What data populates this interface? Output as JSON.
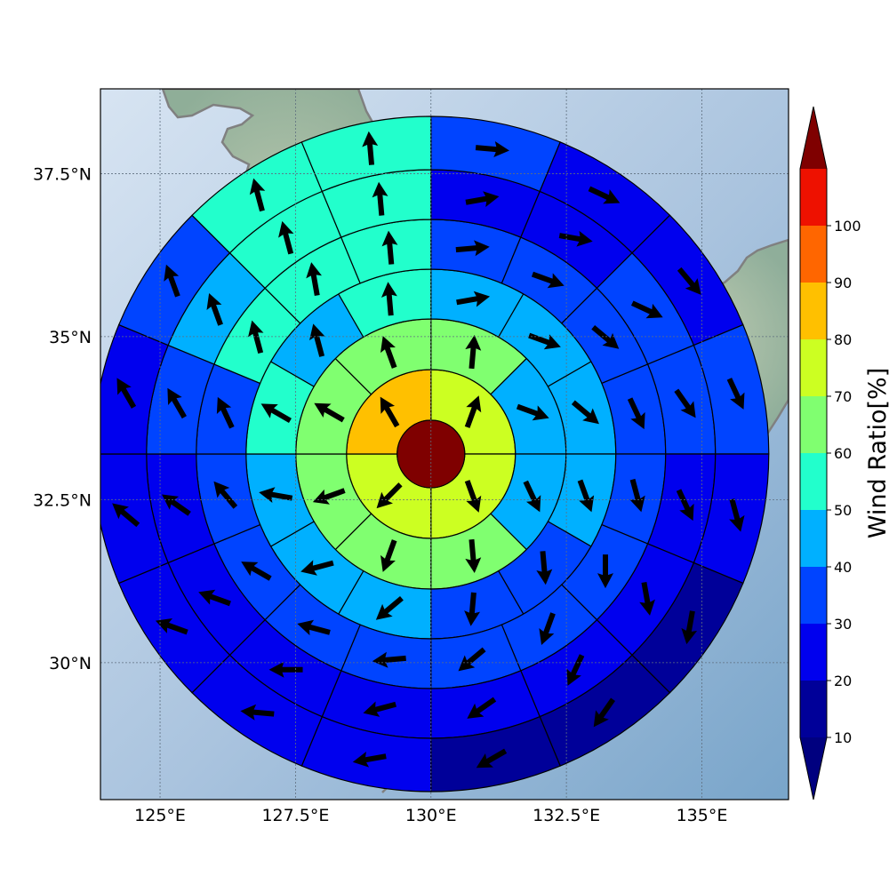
{
  "map": {
    "lon_ticks": [
      {
        "value": 125,
        "label": "125°E"
      },
      {
        "value": 127.5,
        "label": "127.5°E"
      },
      {
        "value": 130,
        "label": "130°E"
      },
      {
        "value": 132.5,
        "label": "132.5°E"
      },
      {
        "value": 135,
        "label": "135°E"
      }
    ],
    "lat_ticks": [
      {
        "value": 37.5,
        "label": "37.5°N"
      },
      {
        "value": 35,
        "label": "35°N"
      },
      {
        "value": 32.5,
        "label": "32.5°N"
      },
      {
        "value": 30,
        "label": "30°N"
      }
    ],
    "extent": {
      "lon_min": 123.9,
      "lon_max": 136.6,
      "lat_min": 27.9,
      "lat_max": 38.8
    },
    "center": {
      "lon": 130.0,
      "lat": 33.2
    },
    "colors": {
      "coast": "#808080",
      "sea_light": "#d7e4f2",
      "sea_dark": "#79a5ca",
      "land": "#9fb8a4"
    }
  },
  "colorbar": {
    "label": "Wind Ratio[%]",
    "ticks": [
      "10",
      "20",
      "30",
      "40",
      "50",
      "60",
      "70",
      "80",
      "90",
      "100"
    ],
    "colors": [
      "#000099",
      "#0000ee",
      "#0044ff",
      "#00b0ff",
      "#22ffcc",
      "#80ff70",
      "#ccff22",
      "#ffc000",
      "#ff6600",
      "#ee1100"
    ],
    "under_color": "#00007f",
    "over_color": "#7f0000"
  },
  "wind": {
    "center_value": 100,
    "rings": [
      {
        "sectors": 4,
        "values": [
          71,
          72,
          73,
          84
        ],
        "directions": [
          20,
          160,
          225,
          330
        ]
      },
      {
        "sectors": 8,
        "values": [
          65,
          49,
          48,
          62,
          63,
          64,
          66,
          67
        ],
        "directions": [
          5,
          110,
          155,
          175,
          200,
          250,
          300,
          340
        ]
      },
      {
        "sectors": 12,
        "values": [
          44,
          41,
          45,
          44,
          37,
          38,
          44,
          43,
          46,
          55,
          48,
          53
        ],
        "directions": [
          80,
          110,
          130,
          160,
          175,
          185,
          230,
          255,
          280,
          300,
          345,
          355
        ]
      },
      {
        "sectors": 16,
        "values": [
          33,
          31,
          34,
          33,
          31,
          31,
          33,
          32,
          33,
          34,
          34,
          34,
          38,
          53,
          57,
          55
        ],
        "directions": [
          85,
          110,
          130,
          155,
          165,
          180,
          200,
          230,
          265,
          285,
          300,
          320,
          335,
          345,
          350,
          355
        ]
      },
      {
        "sectors": 16,
        "values": [
          25,
          22,
          31,
          34,
          25,
          21,
          24,
          28,
          28,
          25,
          25,
          25,
          37,
          42,
          55,
          58
        ],
        "directions": [
          80,
          100,
          115,
          145,
          155,
          170,
          205,
          235,
          255,
          270,
          290,
          305,
          330,
          340,
          345,
          355
        ]
      },
      {
        "sectors": 16,
        "values": [
          31,
          23,
          27,
          31,
          21,
          17,
          18,
          18,
          23,
          20,
          22,
          20,
          28,
          39,
          54,
          57
        ],
        "directions": [
          95,
          115,
          140,
          155,
          165,
          190,
          215,
          240,
          260,
          275,
          290,
          310,
          330,
          340,
          345,
          355
        ]
      }
    ]
  }
}
